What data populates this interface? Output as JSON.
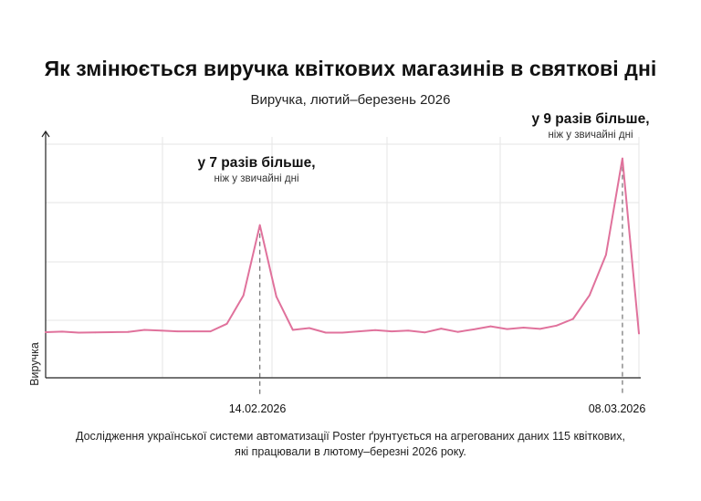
{
  "title": "Як змінюється виручка квіткових магазинів в святкові дні",
  "subtitle": "Виручка, лютий–березень 2026",
  "footnote": {
    "line1": "Дослідження української системи автоматизації Poster ґрунтується на агрегованих даних 115 квіткових,",
    "line2": "які працювали в лютому–березні 2026 року."
  },
  "colors": {
    "line": "#e0729c",
    "grid": "#e6e6e6",
    "axis": "#222222"
  },
  "chart_data": {
    "type": "line",
    "title": "Як змінюється виручка квіткових магазинів в святкові дні",
    "subtitle": "Виручка, лютий–березень 2026",
    "xlabel": "",
    "ylabel": "Виручка",
    "grid": true,
    "x_start": "2026-02-01",
    "x_end": "2026-03-09",
    "values": [
      1.0,
      1.02,
      0.98,
      0.99,
      1.0,
      1.01,
      1.09,
      1.06,
      1.03,
      1.03,
      1.03,
      1.33,
      2.45,
      5.22,
      2.4,
      1.09,
      1.16,
      0.98,
      0.98,
      1.03,
      1.08,
      1.03,
      1.06,
      0.99,
      1.14,
      1.01,
      1.11,
      1.23,
      1.12,
      1.18,
      1.13,
      1.26,
      1.52,
      2.45,
      4.05,
      7.85,
      0.95
    ],
    "ylim": [
      -0.8,
      8.7
    ],
    "xticks": [
      "14.02.2026",
      "08.03.2026"
    ],
    "annotations": [
      {
        "x": "14.02.2026",
        "title": "у 7 разів більше,",
        "subtitle": "ніж у звичайні дні"
      },
      {
        "x": "08.03.2026",
        "title": "у 9 разів більше,",
        "subtitle": "ніж у звичайні дні"
      }
    ]
  }
}
